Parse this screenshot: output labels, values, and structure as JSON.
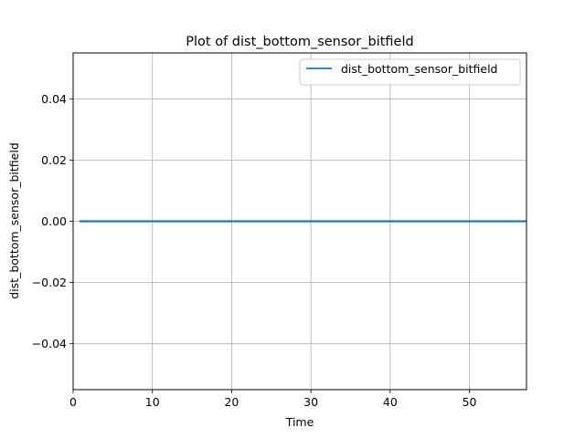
{
  "chart_data": {
    "type": "line",
    "title": "Plot of dist_bottom_sensor_bitfield",
    "xlabel": "Time",
    "ylabel": "dist_bottom_sensor_bitfield",
    "xlim": [
      0,
      57.2
    ],
    "ylim": [
      -0.055,
      0.055
    ],
    "xticks": [
      0,
      10,
      20,
      30,
      40,
      50
    ],
    "xtick_labels": [
      "0",
      "10",
      "20",
      "30",
      "40",
      "50"
    ],
    "yticks": [
      -0.04,
      -0.02,
      0.0,
      0.02,
      0.04
    ],
    "ytick_labels": [
      "−0.04",
      "−0.02",
      "0.00",
      "0.02",
      "0.04"
    ],
    "grid": true,
    "legend_position": "top-right",
    "series": [
      {
        "name": "dist_bottom_sensor_bitfield",
        "color": "#1f77b4",
        "x": [
          0.8,
          57.2
        ],
        "y": [
          0,
          0
        ]
      }
    ]
  }
}
